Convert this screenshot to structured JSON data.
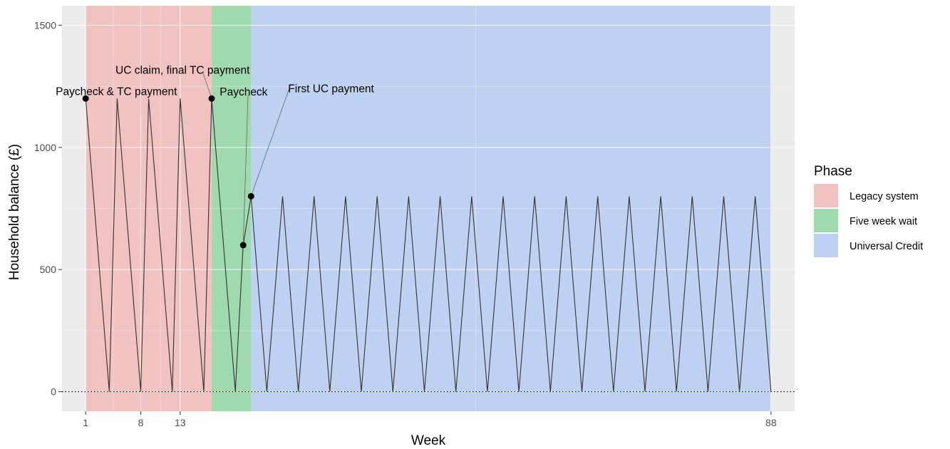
{
  "chart_data": {
    "type": "line",
    "xlabel": "Week",
    "ylabel": "Household balance (£)",
    "xlim": [
      -2,
      91
    ],
    "ylim": [
      -80,
      1580
    ],
    "x_ticks": [
      1,
      8,
      13,
      88
    ],
    "y_ticks": [
      0,
      500,
      1000,
      1500
    ],
    "grid": true,
    "reference_line": {
      "y": 0,
      "style": "dotted"
    },
    "legend": {
      "title": "Phase",
      "position": "right",
      "entries": [
        {
          "name": "Legacy system",
          "color": "#f0c2c0"
        },
        {
          "name": "Five week wait",
          "color": "#9fd9ae"
        },
        {
          "name": "Universal Credit",
          "color": "#bfd1f0"
        }
      ]
    },
    "phases": [
      {
        "name": "Legacy system",
        "x_start": 1,
        "x_end": 17,
        "color": "#f0c2c0"
      },
      {
        "name": "Five week wait",
        "x_start": 17,
        "x_end": 22,
        "color": "#9fd9ae"
      },
      {
        "name": "Universal Credit",
        "x_start": 22,
        "x_end": 88,
        "color": "#bfd1f0"
      }
    ],
    "series": [
      {
        "color": "#333333",
        "points": [
          [
            1,
            1200
          ],
          [
            4,
            0
          ],
          [
            5,
            1200
          ],
          [
            8,
            0
          ],
          [
            9,
            1200
          ],
          [
            12,
            0
          ],
          [
            13,
            1200
          ],
          [
            16,
            0
          ],
          [
            17,
            1200
          ],
          [
            20,
            0
          ],
          [
            21,
            600
          ],
          [
            22,
            800
          ],
          [
            24,
            0
          ],
          [
            26,
            800
          ],
          [
            28,
            0
          ],
          [
            30,
            800
          ],
          [
            32,
            0
          ],
          [
            34,
            800
          ],
          [
            36,
            0
          ],
          [
            38,
            800
          ],
          [
            40,
            0
          ],
          [
            42,
            800
          ],
          [
            44,
            0
          ],
          [
            46,
            800
          ],
          [
            48,
            0
          ],
          [
            50,
            800
          ],
          [
            52,
            0
          ],
          [
            54,
            800
          ],
          [
            56,
            0
          ],
          [
            58,
            800
          ],
          [
            60,
            0
          ],
          [
            62,
            800
          ],
          [
            64,
            0
          ],
          [
            66,
            800
          ],
          [
            68,
            0
          ],
          [
            70,
            800
          ],
          [
            72,
            0
          ],
          [
            74,
            800
          ],
          [
            76,
            0
          ],
          [
            78,
            800
          ],
          [
            80,
            0
          ],
          [
            82,
            800
          ],
          [
            84,
            0
          ],
          [
            86,
            800
          ],
          [
            88,
            0
          ]
        ]
      }
    ],
    "events": [
      {
        "x": 1,
        "y": 1200,
        "label": "Paycheck & TC payment"
      },
      {
        "x": 17,
        "y": 1200,
        "label": "UC claim, final TC payment"
      },
      {
        "x": 21,
        "y": 600,
        "label": "Paycheck"
      },
      {
        "x": 22,
        "y": 800,
        "label": "First UC payment"
      }
    ]
  }
}
